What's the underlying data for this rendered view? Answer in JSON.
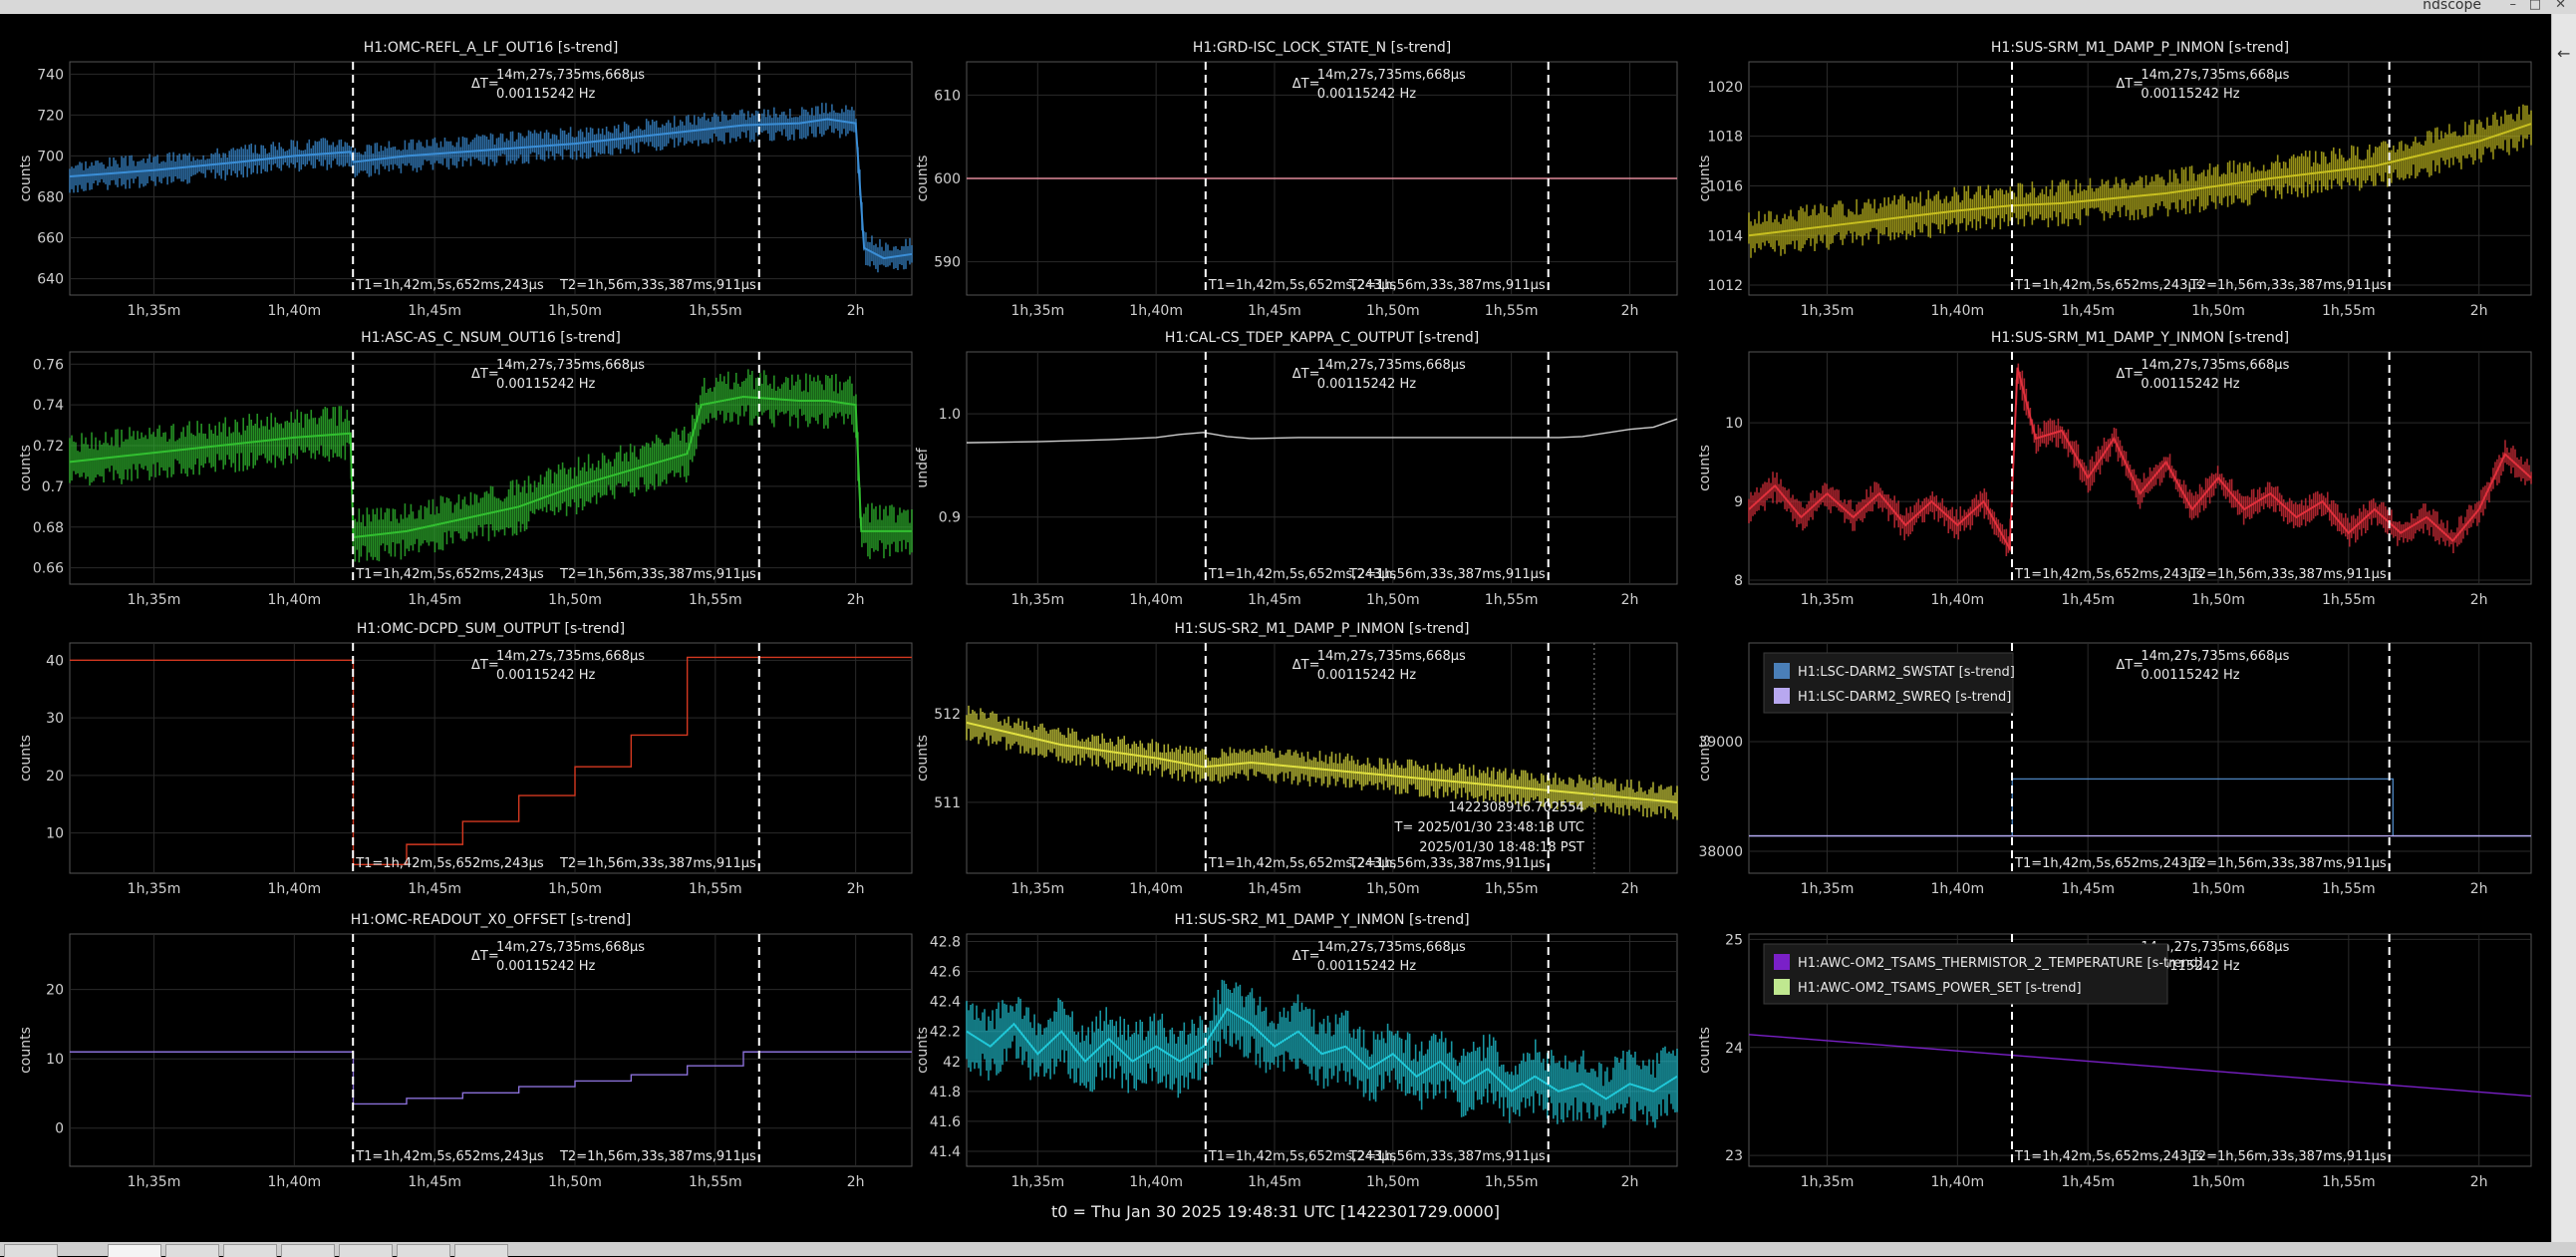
{
  "window": {
    "title": "ndscope",
    "controls": [
      "–",
      "□",
      "✕"
    ],
    "side_icon": "arrow-left-icon"
  },
  "footer": "t0 = Thu Jan 30 2025 19:48:31 UTC [1422301729.0000]",
  "time_ticks": [
    "1h,35m",
    "1h,40m",
    "1h,45m",
    "1h,50m",
    "1h,55m",
    "2h"
  ],
  "cursor": {
    "delta_t": "ΔT=",
    "delta_value": "14m,27s,735ms,668µs",
    "delta_freq": "0.00115242 Hz",
    "t1": "T1=1h,42m,5s,652ms,243µs",
    "t2": "T2=1h,56m,33s,387ms,911µs",
    "t1_time": 102.09,
    "t2_time": 116.56
  },
  "tabs": [
    "",
    "",
    "",
    "",
    "",
    "",
    "",
    ""
  ],
  "plots": [
    {
      "title": "H1:OMC-REFL_A_LF_OUT16 [s-trend]",
      "ylabel": "counts",
      "yticks": [
        "740",
        "720",
        "700",
        "680",
        "660",
        "640"
      ],
      "color": "#3b8ed6"
    },
    {
      "title": "H1:GRD-ISC_LOCK_STATE_N [s-trend]",
      "ylabel": "counts",
      "yticks": [
        "610",
        "600",
        "590"
      ],
      "color": "#e08a9a"
    },
    {
      "title": "H1:SUS-SRM_M1_DAMP_P_INMON [s-trend]",
      "ylabel": "counts",
      "yticks": [
        "1020",
        "1018",
        "1016",
        "1014",
        "1012"
      ],
      "color": "#c8c020"
    },
    {
      "title": "H1:ASC-AS_C_NSUM_OUT16 [s-trend]",
      "ylabel": "counts",
      "yticks": [
        "0.76",
        "0.74",
        "0.72",
        "0.7",
        "0.68",
        "0.66"
      ],
      "color": "#32c030"
    },
    {
      "title": "H1:CAL-CS_TDEP_KAPPA_C_OUTPUT [s-trend]",
      "ylabel": "undef",
      "yticks": [
        "1.0",
        "0.9"
      ],
      "color": "#cfcfcf"
    },
    {
      "title": "H1:SUS-SRM_M1_DAMP_Y_INMON [s-trend]",
      "ylabel": "counts",
      "yticks": [
        "10",
        "9",
        "8"
      ],
      "color": "#e0303c"
    },
    {
      "title": "H1:OMC-DCPD_SUM_OUTPUT [s-trend]",
      "ylabel": "counts",
      "yticks": [
        "40",
        "30",
        "20",
        "10"
      ],
      "color": "#d43820"
    },
    {
      "title": "H1:SUS-SR2_M1_DAMP_P_INMON [s-trend]",
      "ylabel": "counts",
      "yticks": [
        "512",
        "511"
      ],
      "color": "#e0e040",
      "crosshair": {
        "line1": "1422308916.702554",
        "line2": "T= 2025/01/30 23:48:18 UTC",
        "line3": "2025/01/30 18:48:18 PST"
      }
    },
    {
      "title": "",
      "ylabel": "counts",
      "yticks": [
        "39000",
        "38000"
      ],
      "color": "#4a88c8",
      "legend": [
        {
          "name": "H1:LSC-DARM2_SWSTAT [s-trend]",
          "color": "#4a7fb8"
        },
        {
          "name": "H1:LSC-DARM2_SWREQ [s-trend]",
          "color": "#b8a8f0"
        }
      ]
    },
    {
      "title": "H1:OMC-READOUT_X0_OFFSET [s-trend]",
      "ylabel": "counts",
      "yticks": [
        "20",
        "10",
        "0"
      ],
      "color": "#8a70d8"
    },
    {
      "title": "H1:SUS-SR2_M1_DAMP_Y_INMON [s-trend]",
      "ylabel": "counts",
      "yticks": [
        "42.8",
        "42.6",
        "42.4",
        "42.2",
        "42",
        "41.8",
        "41.6",
        "41.4"
      ],
      "color": "#20c8d8"
    },
    {
      "title": "",
      "ylabel": "counts",
      "yticks": [
        "25",
        "24",
        "23"
      ],
      "color": "#7a20c8",
      "legend": [
        {
          "name": "H1:AWC-OM2_TSAMS_THERMISTOR_2_TEMPERATURE [s-trend]",
          "color": "#7a20c8"
        },
        {
          "name": "H1:AWC-OM2_TSAMS_POWER_SET [s-trend]",
          "color": "#c0e890"
        }
      ]
    }
  ],
  "chart_data": [
    {
      "type": "line",
      "title": "H1:OMC-REFL_A_LF_OUT16 [s-trend]",
      "xlabel": "",
      "ylabel": "counts",
      "xlim": [
        92,
        122
      ],
      "ylim": [
        632,
        746
      ],
      "band": 6,
      "series": [
        {
          "name": "H1:OMC-REFL_A_LF_OUT16 [s-trend]",
          "x": [
            92,
            95,
            98,
            100,
            102,
            102.1,
            104,
            106,
            108,
            110,
            112,
            114,
            116,
            118,
            119,
            120,
            120.3,
            121,
            122
          ],
          "y": [
            690,
            693,
            697,
            700,
            702,
            697,
            700,
            702,
            704,
            706,
            709,
            712,
            715,
            716,
            718,
            716,
            655,
            650,
            652
          ]
        }
      ]
    },
    {
      "type": "line",
      "title": "H1:GRD-ISC_LOCK_STATE_N [s-trend]",
      "xlabel": "",
      "ylabel": "counts",
      "xlim": [
        92,
        122
      ],
      "ylim": [
        586,
        614
      ],
      "band": 0,
      "series": [
        {
          "name": "H1:GRD-ISC_LOCK_STATE_N [s-trend]",
          "x": [
            92,
            122
          ],
          "y": [
            600,
            600
          ]
        }
      ]
    },
    {
      "type": "line",
      "title": "H1:SUS-SRM_M1_DAMP_P_INMON [s-trend]",
      "xlabel": "",
      "ylabel": "counts",
      "xlim": [
        92,
        122
      ],
      "ylim": [
        1011.6,
        1021
      ],
      "band": 0.7,
      "series": [
        {
          "name": "H1:SUS-SRM_M1_DAMP_P_INMON [s-trend]",
          "x": [
            92,
            96,
            100,
            102,
            104,
            108,
            112,
            116,
            118,
            120,
            122
          ],
          "y": [
            1014.0,
            1014.5,
            1015.0,
            1015.2,
            1015.3,
            1015.7,
            1016.3,
            1016.8,
            1017.3,
            1017.8,
            1018.5
          ]
        }
      ]
    },
    {
      "type": "line",
      "title": "H1:ASC-AS_C_NSUM_OUT16 [s-trend]",
      "xlabel": "",
      "ylabel": "counts",
      "xlim": [
        92,
        122
      ],
      "ylim": [
        0.652,
        0.766
      ],
      "band": 0.01,
      "series": [
        {
          "name": "H1:ASC-AS_C_NSUM_OUT16 [s-trend]",
          "x": [
            92,
            96,
            100,
            102,
            102.1,
            104,
            106,
            108,
            110,
            112,
            114,
            114.5,
            116,
            118,
            119,
            120,
            120.2,
            122
          ],
          "y": [
            0.712,
            0.718,
            0.724,
            0.726,
            0.675,
            0.678,
            0.684,
            0.69,
            0.7,
            0.708,
            0.716,
            0.74,
            0.744,
            0.742,
            0.742,
            0.74,
            0.678,
            0.678
          ]
        }
      ]
    },
    {
      "type": "line",
      "title": "H1:CAL-CS_TDEP_KAPPA_C_OUTPUT [s-trend]",
      "xlabel": "",
      "ylabel": "undef",
      "xlim": [
        92,
        122
      ],
      "ylim": [
        0.835,
        1.06
      ],
      "band": 0,
      "series": [
        {
          "name": "H1:CAL-CS_TDEP_KAPPA_C_OUTPUT [s-trend]",
          "x": [
            92,
            95,
            98,
            100,
            101,
            102,
            103,
            104,
            106,
            110,
            114,
            117,
            118,
            120,
            121,
            122
          ],
          "y": [
            0.972,
            0.973,
            0.975,
            0.977,
            0.98,
            0.982,
            0.978,
            0.976,
            0.977,
            0.977,
            0.977,
            0.977,
            0.978,
            0.985,
            0.987,
            0.995
          ]
        }
      ]
    },
    {
      "type": "line",
      "title": "H1:SUS-SRM_M1_DAMP_Y_INMON [s-trend]",
      "xlabel": "",
      "ylabel": "counts",
      "xlim": [
        92,
        122
      ],
      "ylim": [
        7.95,
        10.9
      ],
      "band": 0.15,
      "series": [
        {
          "name": "H1:SUS-SRM_M1_DAMP_Y_INMON [s-trend]",
          "x": [
            92,
            93,
            94,
            95,
            96,
            97,
            98,
            99,
            100,
            101,
            102,
            102.3,
            103,
            104,
            105,
            106,
            107,
            108,
            109,
            110,
            111,
            112,
            113,
            114,
            115,
            116,
            117,
            118,
            119,
            120,
            121,
            122
          ],
          "y": [
            8.9,
            9.2,
            8.8,
            9.1,
            8.8,
            9.1,
            8.7,
            9.0,
            8.7,
            9.0,
            8.4,
            10.7,
            9.8,
            9.9,
            9.3,
            9.8,
            9.1,
            9.5,
            8.9,
            9.3,
            8.9,
            9.1,
            8.8,
            9.0,
            8.6,
            8.9,
            8.6,
            8.8,
            8.5,
            8.9,
            9.6,
            9.3
          ]
        }
      ]
    },
    {
      "type": "line",
      "title": "H1:OMC-DCPD_SUM_OUTPUT [s-trend]",
      "xlabel": "",
      "ylabel": "counts",
      "xlim": [
        92,
        122
      ],
      "ylim": [
        3,
        43
      ],
      "band": 0,
      "series": [
        {
          "name": "H1:OMC-DCPD_SUM_OUTPUT [s-trend]",
          "x": [
            92,
            102.1,
            102.1,
            104,
            104,
            106,
            106,
            108,
            108,
            110,
            110,
            112,
            112,
            114,
            114,
            116,
            116,
            122
          ],
          "y": [
            40,
            40,
            4.5,
            4.5,
            8,
            8,
            12,
            12,
            16.5,
            16.5,
            21.5,
            21.5,
            27,
            27,
            40.5,
            40.5,
            40.5,
            40.5
          ]
        }
      ]
    },
    {
      "type": "line",
      "title": "H1:SUS-SR2_M1_DAMP_P_INMON [s-trend]",
      "xlabel": "",
      "ylabel": "counts",
      "xlim": [
        92,
        122
      ],
      "ylim": [
        510.2,
        512.8
      ],
      "band": 0.15,
      "series": [
        {
          "name": "H1:SUS-SR2_M1_DAMP_P_INMON [s-trend]",
          "x": [
            92,
            96,
            100,
            102,
            104,
            108,
            112,
            116,
            118,
            120,
            122
          ],
          "y": [
            511.9,
            511.65,
            511.5,
            511.4,
            511.45,
            511.35,
            511.25,
            511.15,
            511.1,
            511.05,
            511.0
          ]
        }
      ]
    },
    {
      "type": "line",
      "title": "",
      "xlabel": "",
      "ylabel": "counts",
      "xlim": [
        92,
        122
      ],
      "ylim": [
        37800,
        39900
      ],
      "band": 0,
      "series": [
        {
          "name": "H1:LSC-DARM2_SWSTAT [s-trend]",
          "x": [
            92,
            102.1,
            102.1,
            116.7,
            116.7,
            122
          ],
          "y": [
            38140,
            38140,
            38660,
            38660,
            38140,
            38140
          ]
        },
        {
          "name": "H1:LSC-DARM2_SWREQ [s-trend]",
          "x": [
            92,
            122
          ],
          "y": [
            38140,
            38140
          ]
        }
      ]
    },
    {
      "type": "line",
      "title": "H1:OMC-READOUT_X0_OFFSET [s-trend]",
      "xlabel": "",
      "ylabel": "counts",
      "xlim": [
        92,
        122
      ],
      "ylim": [
        -5.5,
        28
      ],
      "band": 0,
      "series": [
        {
          "name": "H1:OMC-READOUT_X0_OFFSET [s-trend]",
          "x": [
            92,
            102.1,
            102.1,
            104,
            104,
            106,
            106,
            108,
            108,
            110,
            110,
            112,
            112,
            114,
            114,
            116,
            116,
            122
          ],
          "y": [
            11,
            11,
            3.5,
            3.5,
            4.3,
            4.3,
            5.1,
            5.1,
            6,
            6,
            6.8,
            6.8,
            7.7,
            7.7,
            9,
            9,
            11,
            11
          ]
        }
      ]
    },
    {
      "type": "line",
      "title": "H1:SUS-SR2_M1_DAMP_Y_INMON [s-trend]",
      "xlabel": "",
      "ylabel": "counts",
      "xlim": [
        92,
        122
      ],
      "ylim": [
        41.3,
        42.85
      ],
      "band": 0.18,
      "series": [
        {
          "name": "H1:SUS-SR2_M1_DAMP_Y_INMON [s-trend]",
          "x": [
            92,
            93,
            94,
            95,
            96,
            97,
            98,
            99,
            100,
            101,
            102,
            103,
            104,
            105,
            106,
            107,
            108,
            109,
            110,
            111,
            112,
            113,
            114,
            115,
            116,
            117,
            118,
            119,
            120,
            121,
            122
          ],
          "y": [
            42.2,
            42.1,
            42.25,
            42.05,
            42.2,
            42.0,
            42.15,
            42.0,
            42.1,
            42.0,
            42.1,
            42.35,
            42.25,
            42.1,
            42.2,
            42.05,
            42.1,
            41.95,
            42.05,
            41.9,
            42.0,
            41.85,
            41.95,
            41.8,
            41.9,
            41.8,
            41.85,
            41.75,
            41.85,
            41.8,
            41.9
          ]
        }
      ]
    },
    {
      "type": "line",
      "title": "",
      "xlabel": "",
      "ylabel": "counts",
      "xlim": [
        92,
        122
      ],
      "ylim": [
        22.9,
        25.05
      ],
      "band": 0,
      "series": [
        {
          "name": "H1:AWC-OM2_TSAMS_THERMISTOR_2_TEMPERATURE [s-trend]",
          "x": [
            92,
            122
          ],
          "y": [
            24.12,
            23.55
          ]
        }
      ]
    }
  ]
}
